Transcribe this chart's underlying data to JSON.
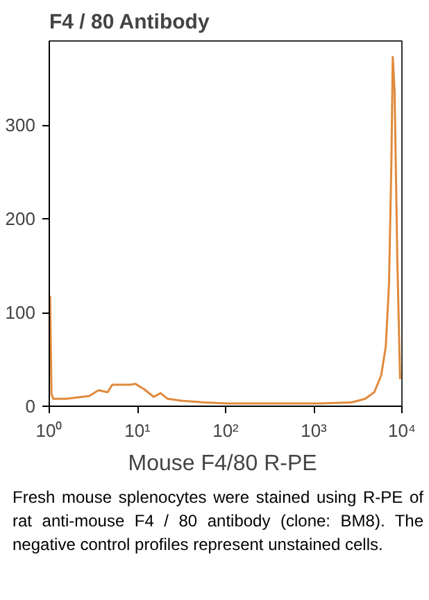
{
  "chart_data": {
    "type": "line",
    "title": "F4 / 80 Antibody",
    "xlabel": "Mouse F4/80  R-PE",
    "log": "x",
    "grid": false,
    "xlim": [
      1,
      10000
    ],
    "xticks": [
      {
        "value": 1,
        "label": "10⁰"
      },
      {
        "value": 10,
        "label": "10¹"
      },
      {
        "value": 100,
        "label": "10²"
      },
      {
        "value": 1000,
        "label": "10³"
      },
      {
        "value": 10000,
        "label": "10⁴"
      }
    ],
    "ylim": [
      0,
      390
    ],
    "yticks": [
      0,
      100,
      200,
      300
    ],
    "series": [
      {
        "color": "#e08a3c",
        "x": [
          1.02,
          1.06,
          1.11,
          1.56,
          2.84,
          3.61,
          4.59,
          5.18,
          8.38,
          9.44,
          12.0,
          15.3,
          18.3,
          21.9,
          31.4,
          57.2,
          104,
          1150,
          2670,
          3830,
          4860,
          5820,
          6560,
          7140,
          7590,
          7870,
          8260,
          8870,
          9530
        ],
        "values": [
          118,
          13,
          8,
          8,
          11,
          17,
          15,
          23,
          23,
          24,
          18,
          10,
          14,
          8,
          6,
          4,
          3,
          3,
          4,
          8,
          15,
          33,
          64,
          131,
          259,
          373,
          336,
          156,
          29
        ]
      }
    ],
    "annotations": [
      "Fresh mouse splenocytes were stained using R-PE of rat anti-mouse F4 / 80 antibody (clone: BM8). The negative control profiles represent unstained cells."
    ]
  }
}
